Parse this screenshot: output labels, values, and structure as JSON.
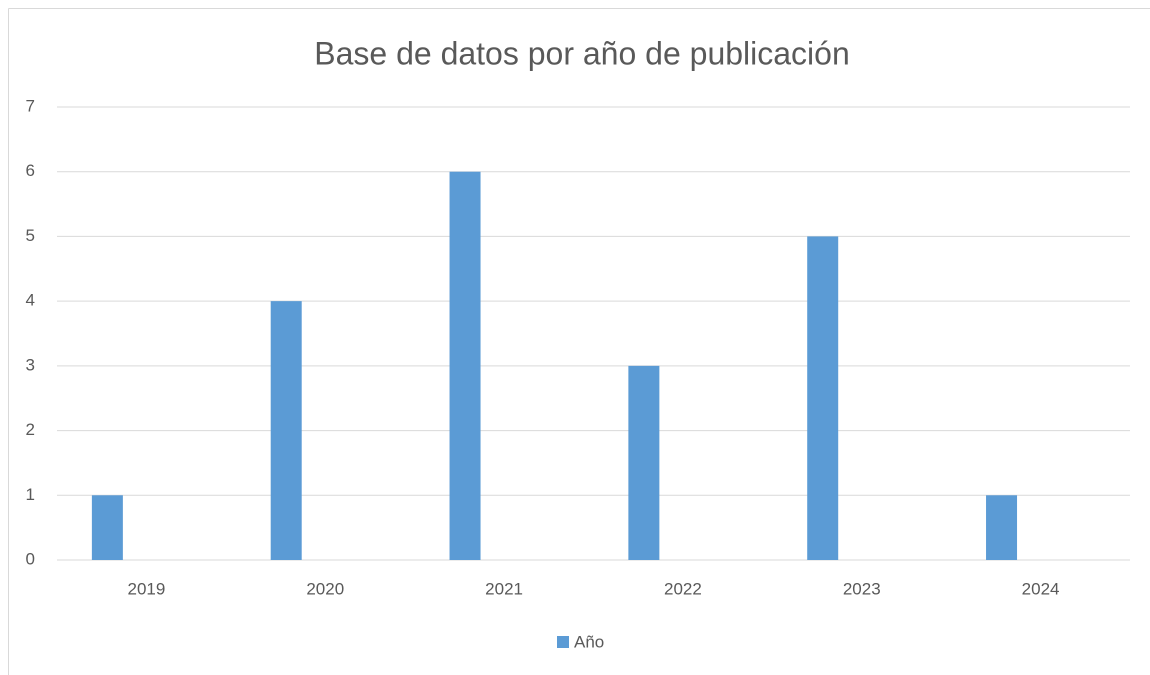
{
  "chart_data": {
    "type": "bar",
    "title": "Base de datos por año de publicación",
    "categories": [
      "2019",
      "2020",
      "2021",
      "2022",
      "2023",
      "2024"
    ],
    "series": [
      {
        "name": "Año",
        "color": "#5b9bd5",
        "values": [
          1,
          4,
          6,
          3,
          5,
          1
        ]
      }
    ],
    "ylim": [
      0,
      7
    ],
    "yticks": [
      0,
      1,
      2,
      3,
      4,
      5,
      6,
      7
    ],
    "grid": true,
    "legend": "bottom"
  }
}
